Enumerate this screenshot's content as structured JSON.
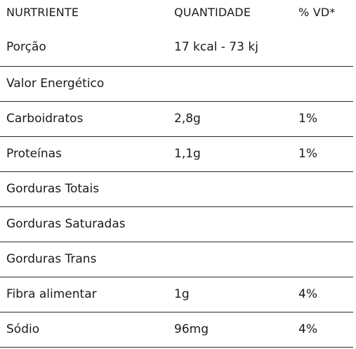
{
  "table": {
    "headers": {
      "nutrient": "NURTRIENTE",
      "quantity": "QUANTIDADE",
      "dv": "% VD*"
    },
    "rows": [
      {
        "nutrient": "Porção",
        "quantity": "17 kcal - 73 kj",
        "dv": ""
      },
      {
        "nutrient": "Valor Energético",
        "quantity": "",
        "dv": ""
      },
      {
        "nutrient": "Carboidratos",
        "quantity": "2,8g",
        "dv": "1%"
      },
      {
        "nutrient": "Proteínas",
        "quantity": "1,1g",
        "dv": "1%"
      },
      {
        "nutrient": "Gorduras Totais",
        "quantity": "",
        "dv": ""
      },
      {
        "nutrient": "Gorduras Saturadas",
        "quantity": "",
        "dv": ""
      },
      {
        "nutrient": "Gorduras Trans",
        "quantity": "",
        "dv": ""
      },
      {
        "nutrient": "Fibra alimentar",
        "quantity": "1g",
        "dv": "4%"
      },
      {
        "nutrient": "Sódio",
        "quantity": "96mg",
        "dv": "4%"
      }
    ]
  }
}
